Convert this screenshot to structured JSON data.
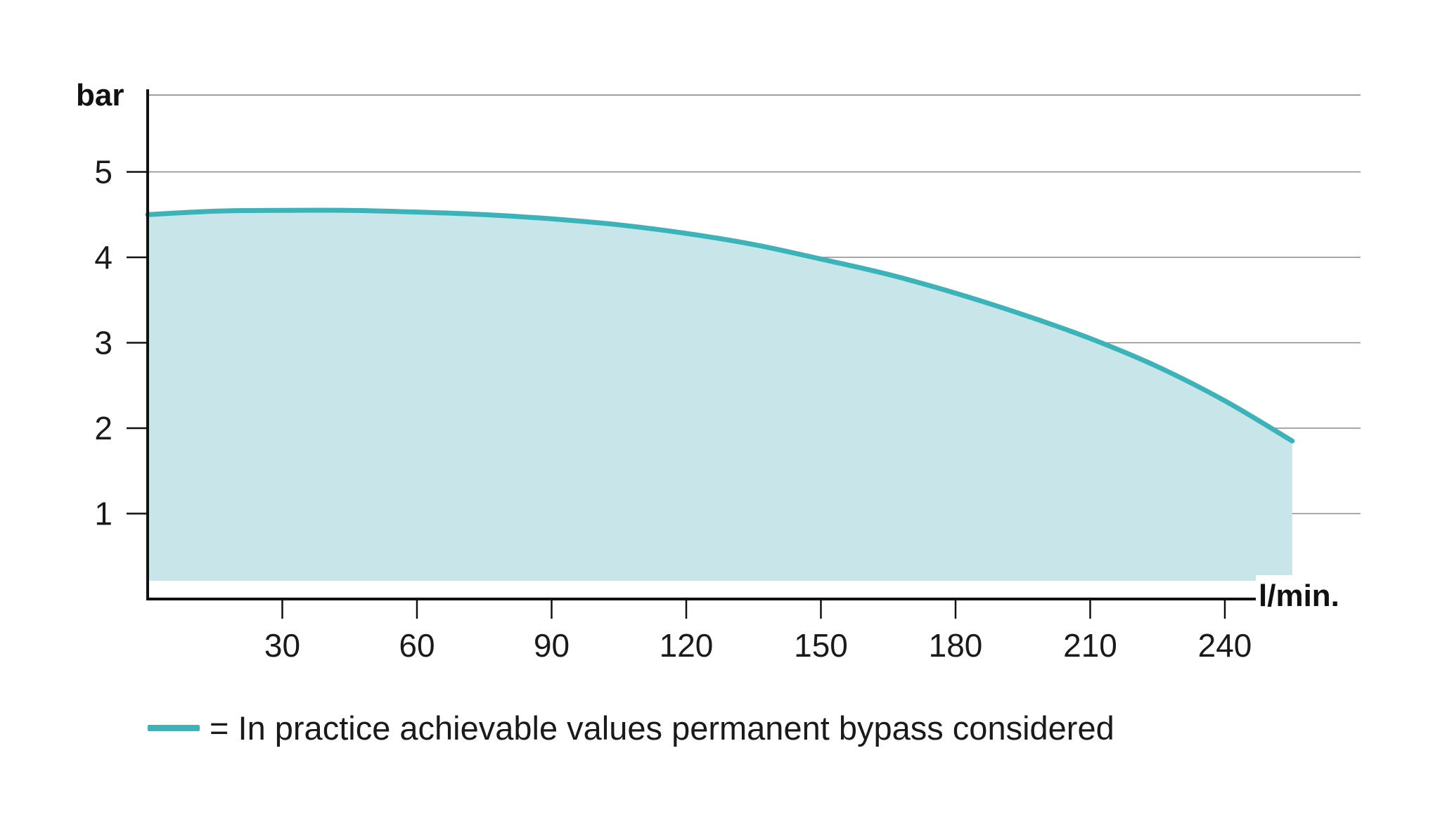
{
  "chart_data": {
    "type": "area",
    "title": "",
    "xlabel": "l/min.",
    "ylabel": "bar",
    "xlim": [
      0,
      255
    ],
    "ylim": [
      0,
      5.9
    ],
    "x_ticks": [
      30,
      60,
      90,
      120,
      150,
      180,
      210,
      240
    ],
    "y_ticks": [
      1,
      2,
      3,
      4,
      5
    ],
    "grid": "horizontal",
    "series": [
      {
        "name": "= In practice achievable values permanent bypass considered",
        "x": [
          0,
          15,
          30,
          45,
          60,
          75,
          90,
          105,
          120,
          135,
          150,
          165,
          180,
          195,
          210,
          225,
          240,
          255
        ],
        "y": [
          4.5,
          4.54,
          4.55,
          4.55,
          4.53,
          4.5,
          4.45,
          4.38,
          4.28,
          4.15,
          3.98,
          3.8,
          3.58,
          3.33,
          3.05,
          2.72,
          2.32,
          1.85
        ]
      }
    ],
    "line_color": "#3bb3b8",
    "fill_color": "#c8e6ea"
  },
  "legend": {
    "text": "= In practice achievable values permanent bypass considered",
    "color": "#3bb3b8"
  }
}
